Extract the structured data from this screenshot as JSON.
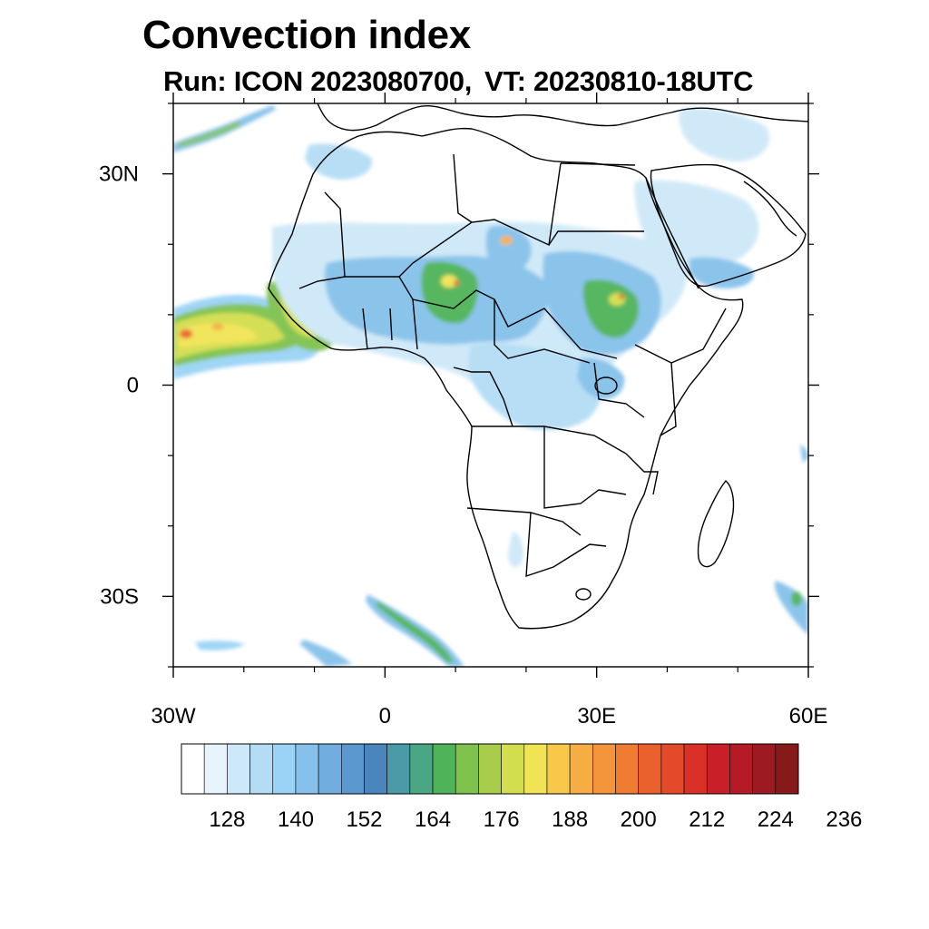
{
  "title": "Convection index",
  "subtitle": {
    "run": "Run: ICON 2023080700,",
    "vt": "VT: 20230810-18UTC"
  },
  "map": {
    "projection": "cylindrical-equidistant",
    "lon_range": [
      -30,
      60
    ],
    "lat_range": [
      -40,
      40
    ],
    "lat_ticks": [
      {
        "value": 30,
        "label": "30N"
      },
      {
        "value": 0,
        "label": "0"
      },
      {
        "value": -30,
        "label": "30S"
      }
    ],
    "lon_ticks": [
      {
        "value": -30,
        "label": "30W"
      },
      {
        "value": 0,
        "label": "0"
      },
      {
        "value": 30,
        "label": "30E"
      },
      {
        "value": 60,
        "label": "60E"
      }
    ],
    "minor_lat_ticks": [
      40,
      20,
      10,
      -10,
      -20,
      -40
    ],
    "minor_lon_ticks": [
      -20,
      -10,
      10,
      20,
      40,
      50
    ],
    "boundaries": "country outlines"
  },
  "colorbar": {
    "colors": [
      "#ffffff",
      "#e8f4fc",
      "#cde8f8",
      "#b4ddf5",
      "#9ad3f5",
      "#85c1ea",
      "#72addf",
      "#5b98d0",
      "#4a85bd",
      "#4a9aa8",
      "#4ba683",
      "#4fb459",
      "#7fc24e",
      "#a9cd4a",
      "#d3de4e",
      "#f1e454",
      "#f8c84a",
      "#f6ae42",
      "#f5953b",
      "#f07c32",
      "#eb612c",
      "#e24a29",
      "#d93127",
      "#c81f28",
      "#b41b27",
      "#9e1a22",
      "#861a1a"
    ],
    "labels": [
      "128",
      "140",
      "152",
      "164",
      "176",
      "188",
      "200",
      "212",
      "224",
      "236"
    ],
    "label_boxes": [
      2,
      5,
      8,
      11,
      14,
      17,
      20,
      23,
      26,
      29
    ]
  }
}
